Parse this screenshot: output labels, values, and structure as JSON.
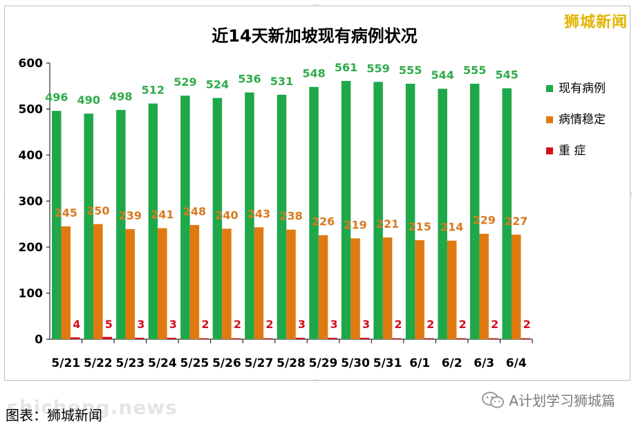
{
  "watermark": "狮城新闻",
  "footer": {
    "source": "图表：狮城新闻",
    "site_watermark": "shicheng.news",
    "account": "A计划学习狮城篇"
  },
  "colors": {
    "existing": "#1ea84a",
    "stable": "#e07a10",
    "critical": "#d30f1c"
  },
  "chart_data": {
    "type": "bar",
    "title": "近14天新加坡现有病例状况",
    "categories": [
      "5/21",
      "5/22",
      "5/23",
      "5/24",
      "5/25",
      "5/26",
      "5/27",
      "5/28",
      "5/29",
      "5/30",
      "5/31",
      "6/1",
      "6/2",
      "6/3",
      "6/4"
    ],
    "series": [
      {
        "name": "现有病例",
        "values": [
          496,
          490,
          498,
          512,
          529,
          524,
          536,
          531,
          548,
          561,
          559,
          555,
          544,
          555,
          545
        ]
      },
      {
        "name": "病情稳定",
        "values": [
          245,
          250,
          239,
          241,
          248,
          240,
          243,
          238,
          226,
          219,
          221,
          215,
          214,
          229,
          227
        ]
      },
      {
        "name": "重 症",
        "values": [
          4,
          5,
          3,
          3,
          2,
          2,
          2,
          3,
          3,
          3,
          2,
          2,
          2,
          2,
          2
        ]
      }
    ],
    "yticks": [
      "0",
      "100",
      "200",
      "300",
      "400",
      "500",
      "600"
    ],
    "ylim": [
      0,
      600
    ],
    "grid": false,
    "legend_position": "right"
  }
}
